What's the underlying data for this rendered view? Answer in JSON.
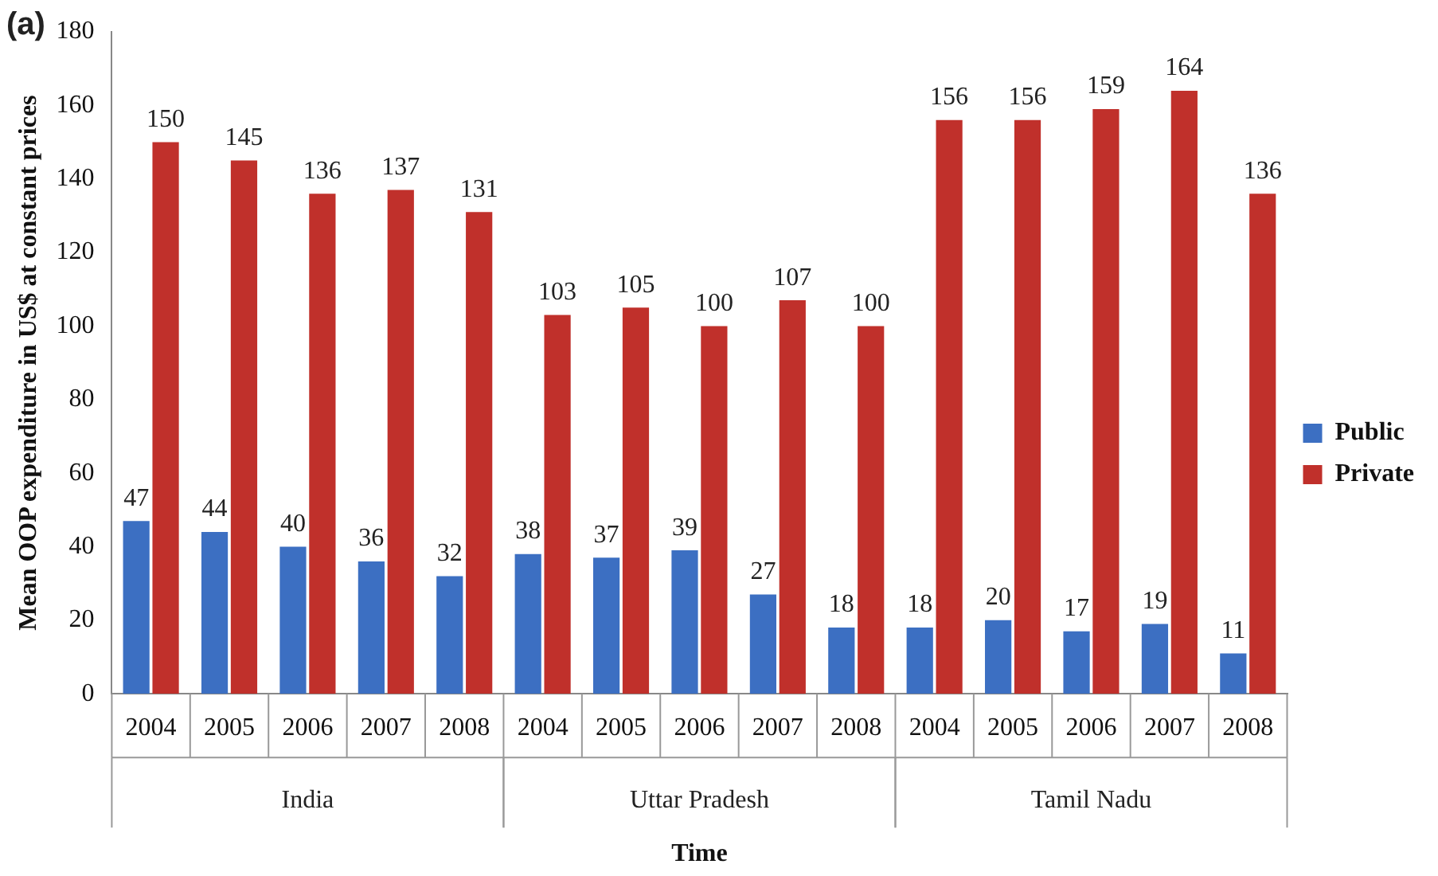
{
  "chart_data": {
    "type": "bar",
    "title": "(a)",
    "xlabel": "Time",
    "ylabel": "Mean OOP expenditure in US$ at constant prices",
    "categories": [
      "2004",
      "2005",
      "2006",
      "2007",
      "2008",
      "2004",
      "2005",
      "2006",
      "2007",
      "2008",
      "2004",
      "2005",
      "2006",
      "2007",
      "2008"
    ],
    "annotations": [
      "India",
      "Uttar Pradesh",
      "Tamil Nadu"
    ],
    "series": [
      {
        "name": "Public",
        "color": "#3c6fc2",
        "values": [
          47,
          44,
          40,
          36,
          32,
          38,
          37,
          39,
          27,
          18,
          18,
          20,
          17,
          19,
          11
        ]
      },
      {
        "name": "Private",
        "color": "#c0302b",
        "values": [
          150,
          145,
          136,
          137,
          131,
          103,
          105,
          100,
          107,
          100,
          156,
          156,
          159,
          164,
          136
        ]
      }
    ],
    "ylim": [
      0,
      180
    ],
    "yticks": [
      0,
      20,
      40,
      60,
      80,
      100,
      120,
      140,
      160,
      180
    ],
    "grid": false,
    "legend": "right",
    "data_labels": true
  }
}
